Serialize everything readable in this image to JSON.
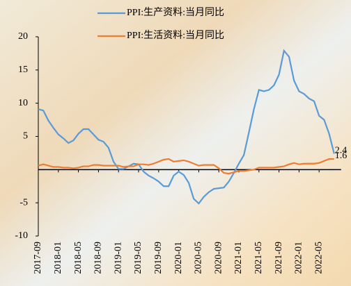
{
  "chart_data": {
    "type": "line",
    "categories": [
      "2017-09",
      null,
      null,
      null,
      "2018-01",
      null,
      null,
      null,
      "2018-05",
      null,
      null,
      null,
      "2018-09",
      null,
      null,
      null,
      "2019-01",
      null,
      null,
      null,
      "2019-05",
      null,
      null,
      null,
      "2019-09",
      null,
      null,
      null,
      "2020-01",
      null,
      null,
      null,
      "2020-05",
      null,
      null,
      null,
      "2020-09",
      null,
      null,
      null,
      "2021-01",
      null,
      null,
      null,
      "2021-05",
      null,
      null,
      null,
      "2021-09",
      null,
      null,
      null,
      "2022-01",
      null,
      null,
      null,
      "2022-05",
      null,
      null,
      null
    ],
    "series": [
      {
        "name": "PPI:生产资料:当月同比",
        "color": "#5b9bd5",
        "values": [
          9.1,
          8.9,
          7.4,
          6.3,
          5.3,
          4.7,
          4.0,
          4.4,
          5.4,
          6.1,
          6.1,
          5.3,
          4.5,
          4.2,
          3.3,
          1.2,
          0.1,
          0.1,
          0.5,
          0.9,
          0.8,
          -0.3,
          -0.9,
          -1.3,
          -1.8,
          -2.5,
          -2.5,
          -0.9,
          -0.3,
          -0.8,
          -2.0,
          -4.4,
          -5.1,
          -4.1,
          -3.4,
          -2.9,
          -2.8,
          -2.7,
          -1.8,
          -0.5,
          0.9,
          2.2,
          5.6,
          9.1,
          12.0,
          11.8,
          12.0,
          12.7,
          14.3,
          17.9,
          17.0,
          13.4,
          11.8,
          11.4,
          10.7,
          10.3,
          8.1,
          7.5,
          5.4,
          2.4
        ]
      },
      {
        "name": "PPI:生活资料:当月同比",
        "color": "#ed7d31",
        "values": [
          0.6,
          0.8,
          0.6,
          0.4,
          0.4,
          0.3,
          0.3,
          0.2,
          0.3,
          0.5,
          0.5,
          0.7,
          0.7,
          0.6,
          0.6,
          0.6,
          0.6,
          0.4,
          0.5,
          0.5,
          0.8,
          0.8,
          0.7,
          0.9,
          1.2,
          1.5,
          1.6,
          1.2,
          1.3,
          1.4,
          1.2,
          0.9,
          0.6,
          0.7,
          0.7,
          0.7,
          0.2,
          -0.5,
          -0.6,
          -0.4,
          -0.2,
          -0.2,
          -0.1,
          0.0,
          0.3,
          0.3,
          0.3,
          0.3,
          0.4,
          0.5,
          0.8,
          1.0,
          0.8,
          0.9,
          0.9,
          0.9,
          1.0,
          1.3,
          1.6,
          1.6
        ]
      }
    ],
    "ylim": [
      -10,
      20
    ],
    "yticks": [
      -10,
      -5,
      5,
      10,
      15,
      20
    ],
    "legend": "top"
  }
}
